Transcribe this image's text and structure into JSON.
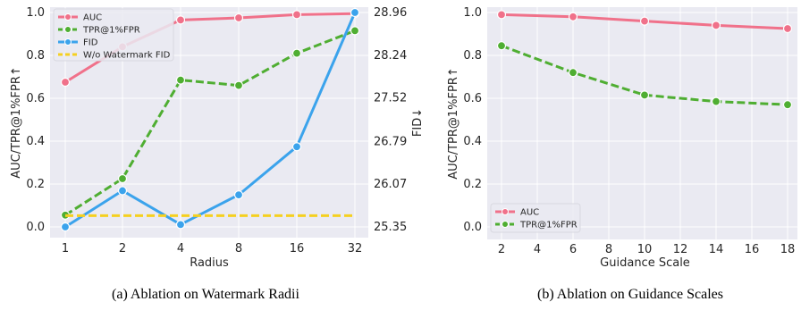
{
  "chart_data": [
    {
      "type": "line",
      "caption": "(a) Ablation on Watermark Radii",
      "xlabel": "Radius",
      "ylabel": "AUC/TPR@1%FPR↑",
      "y2label": "FID↓",
      "categories": [
        "1",
        "2",
        "4",
        "8",
        "16",
        "32"
      ],
      "ylim": [
        0,
        1
      ],
      "yticks": [
        "0.0",
        "0.2",
        "0.4",
        "0.6",
        "0.8",
        "1.0"
      ],
      "y2ticks": [
        "25.35",
        "26.07",
        "26.79",
        "27.52",
        "28.24",
        "28.96"
      ],
      "grid": true,
      "legend_position": "top-left",
      "series": [
        {
          "name": "AUC",
          "axis": "left",
          "style": "solid",
          "color": "#f0718a",
          "values": [
            0.675,
            0.84,
            0.965,
            0.975,
            0.99,
            0.995
          ]
        },
        {
          "name": "TPR@1%FPR",
          "axis": "left",
          "style": "dashed",
          "color": "#4fae32",
          "values": [
            0.055,
            0.225,
            0.685,
            0.66,
            0.81,
            0.915
          ]
        },
        {
          "name": "FID",
          "axis": "right",
          "style": "solid",
          "color": "#3ba3ec",
          "values": [
            25.35,
            25.96,
            25.39,
            25.89,
            26.7,
            28.96
          ]
        },
        {
          "name": "W/o Watermark FID",
          "axis": "right",
          "style": "dashed",
          "color": "#f5d020",
          "values": [
            25.54,
            25.54,
            25.54,
            25.54,
            25.54,
            25.54
          ]
        }
      ]
    },
    {
      "type": "line",
      "caption": "(b) Ablation on Guidance Scales",
      "xlabel": "Guidance Scale",
      "ylabel": "AUC/TPR@1%FPR↑",
      "x": [
        2,
        6,
        10,
        14,
        18
      ],
      "xticks": [
        "2",
        "4",
        "6",
        "8",
        "10",
        "12",
        "14",
        "16",
        "18"
      ],
      "ylim": [
        0,
        1
      ],
      "yticks": [
        "0.0",
        "0.2",
        "0.4",
        "0.6",
        "0.8",
        "1.0"
      ],
      "grid": true,
      "legend_position": "bottom-left",
      "series": [
        {
          "name": "AUC",
          "style": "solid",
          "color": "#f0718a",
          "values": [
            0.99,
            0.98,
            0.96,
            0.94,
            0.925
          ]
        },
        {
          "name": "TPR@1%FPR",
          "style": "dashed",
          "color": "#4fae32",
          "values": [
            0.845,
            0.72,
            0.615,
            0.585,
            0.57
          ]
        }
      ]
    }
  ]
}
